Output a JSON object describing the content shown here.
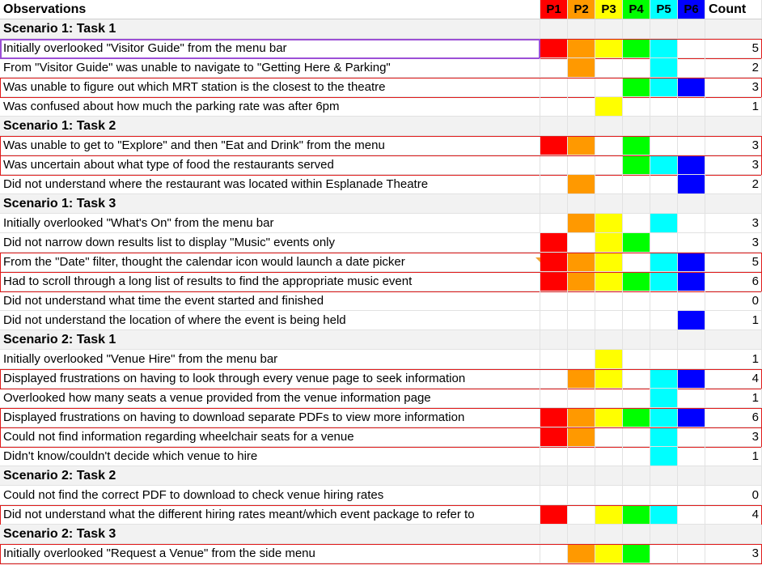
{
  "colors": {
    "P1": "#ff0000",
    "P2": "#ff9900",
    "P3": "#ffff00",
    "P4": "#00ff00",
    "P5": "#00ffff",
    "P6": "#0000ff"
  },
  "header": {
    "observations": "Observations",
    "participants": [
      "P1",
      "P2",
      "P3",
      "P4",
      "P5",
      "P6"
    ],
    "count": "Count"
  },
  "rows": [
    {
      "type": "section",
      "label": "Scenario 1: Task 1"
    },
    {
      "type": "obs",
      "text": "Initially overlooked \"Visitor Guide\" from the menu bar",
      "marks": [
        1,
        1,
        1,
        1,
        1,
        0
      ],
      "count": "5",
      "outlined": true,
      "selected": true
    },
    {
      "type": "obs",
      "text": "From \"Visitor Guide\" was unable to navigate to \"Getting Here & Parking\"",
      "marks": [
        0,
        1,
        0,
        0,
        1,
        0
      ],
      "count": "2"
    },
    {
      "type": "obs",
      "text": "Was unable to figure out which MRT station is the closest to the theatre",
      "marks": [
        0,
        0,
        0,
        1,
        1,
        1
      ],
      "count": "3",
      "outlined": true
    },
    {
      "type": "obs",
      "text": "Was confused about how much the parking rate was after 6pm",
      "marks": [
        0,
        0,
        1,
        0,
        0,
        0
      ],
      "count": "1"
    },
    {
      "type": "section",
      "label": "Scenario 1: Task 2"
    },
    {
      "type": "obs",
      "text": "Was unable to get to \"Explore\" and then \"Eat and Drink\" from the menu",
      "marks": [
        1,
        1,
        0,
        1,
        0,
        0
      ],
      "count": "3",
      "outlined": true
    },
    {
      "type": "obs",
      "text": "Was uncertain about what type of food the restaurants served",
      "marks": [
        0,
        0,
        0,
        1,
        1,
        1
      ],
      "count": "3",
      "outlined": true
    },
    {
      "type": "obs",
      "text": "Did not understand where the restaurant was located within Esplanade Theatre",
      "marks": [
        0,
        1,
        0,
        0,
        0,
        1
      ],
      "count": "2"
    },
    {
      "type": "section",
      "label": "Scenario 1: Task 3"
    },
    {
      "type": "obs",
      "text": "Initially overlooked \"What's On\" from the menu bar",
      "marks": [
        0,
        1,
        1,
        0,
        1,
        0
      ],
      "count": "3"
    },
    {
      "type": "obs",
      "text": "Did not narrow down results list to display \"Music\" events only",
      "marks": [
        1,
        0,
        1,
        1,
        0,
        0
      ],
      "count": "3"
    },
    {
      "type": "obs",
      "text": "From the \"Date\" filter, thought the calendar icon would launch a date picker",
      "marks": [
        1,
        1,
        1,
        0,
        1,
        1
      ],
      "count": "5",
      "outlined": true,
      "note": true
    },
    {
      "type": "obs",
      "text": "Had to scroll through a long list of results to find the appropriate music event",
      "marks": [
        1,
        1,
        1,
        1,
        1,
        1
      ],
      "count": "6",
      "outlined": true
    },
    {
      "type": "obs",
      "text": "Did not understand what time the event started and finished",
      "marks": [
        0,
        0,
        0,
        0,
        0,
        0
      ],
      "count": "0"
    },
    {
      "type": "obs",
      "text": "Did not understand the location of where the event is being held",
      "marks": [
        0,
        0,
        0,
        0,
        0,
        1
      ],
      "count": "1"
    },
    {
      "type": "section",
      "label": "Scenario 2: Task 1"
    },
    {
      "type": "obs",
      "text": "Initially overlooked \"Venue Hire\" from the menu bar",
      "marks": [
        0,
        0,
        1,
        0,
        0,
        0
      ],
      "count": "1"
    },
    {
      "type": "obs",
      "text": "Displayed frustrations on having to look through every venue page to seek information",
      "marks": [
        0,
        1,
        1,
        0,
        1,
        1
      ],
      "count": "4",
      "outlined": true
    },
    {
      "type": "obs",
      "text": "Overlooked how many seats a venue provided from the venue information page",
      "marks": [
        0,
        0,
        0,
        0,
        1,
        0
      ],
      "count": "1"
    },
    {
      "type": "obs",
      "text": "Displayed frustrations on having to download separate PDFs to view more information",
      "marks": [
        1,
        1,
        1,
        1,
        1,
        1
      ],
      "count": "6",
      "outlined": true
    },
    {
      "type": "obs",
      "text": "Could not find information regarding wheelchair seats for a venue",
      "marks": [
        1,
        1,
        0,
        0,
        1,
        0
      ],
      "count": "3",
      "outlined": true
    },
    {
      "type": "obs",
      "text": "Didn't know/couldn't decide which venue to hire",
      "marks": [
        0,
        0,
        0,
        0,
        1,
        0
      ],
      "count": "1"
    },
    {
      "type": "section",
      "label": "Scenario 2: Task 2"
    },
    {
      "type": "obs",
      "text": "Could not find the correct PDF to download to check venue hiring rates",
      "marks": [
        0,
        0,
        0,
        0,
        0,
        0
      ],
      "count": "0"
    },
    {
      "type": "obs",
      "text": "Did not understand what the different hiring rates meant/which event package to refer to",
      "marks": [
        1,
        0,
        1,
        1,
        1,
        0
      ],
      "count": "4",
      "outlined": true
    },
    {
      "type": "section",
      "label": "Scenario 2: Task 3"
    },
    {
      "type": "obs",
      "text": "Initially overlooked \"Request a Venue\" from the side menu",
      "marks": [
        0,
        1,
        1,
        1,
        0,
        0
      ],
      "count": "3",
      "outlined": true
    }
  ]
}
